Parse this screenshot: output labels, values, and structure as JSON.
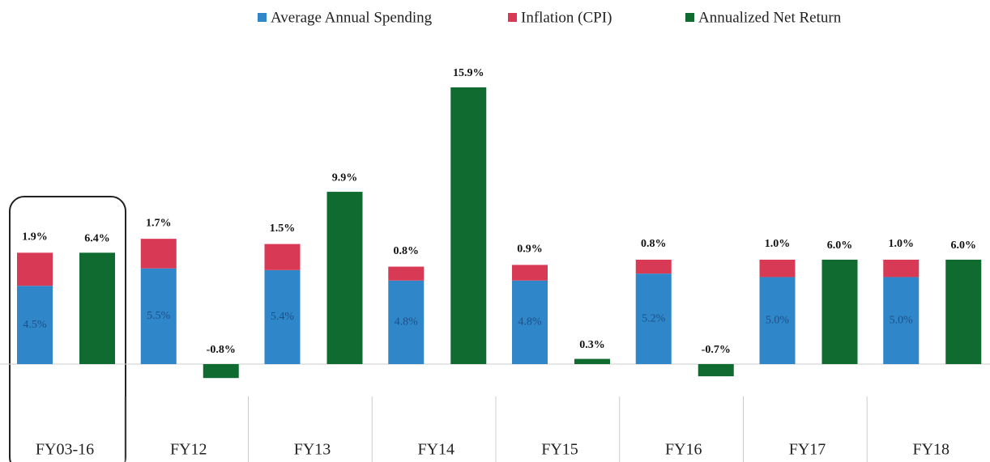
{
  "chart_data": {
    "type": "bar",
    "categories": [
      "FY03-16",
      "FY12",
      "FY13",
      "FY14",
      "FY15",
      "FY16",
      "FY17",
      "FY18"
    ],
    "series": [
      {
        "name": "Average Annual Spending",
        "color": "#2f87c9",
        "values": [
          4.5,
          5.5,
          5.4,
          4.8,
          4.8,
          5.2,
          5.0,
          5.0
        ],
        "value_labels": [
          "4.5%",
          "5.5%",
          "5.4%",
          "4.8%",
          "4.8%",
          "5.2%",
          "5.0%",
          "5.0%"
        ]
      },
      {
        "name": "Inflation (CPI)",
        "color": "#d83a56",
        "values": [
          1.9,
          1.7,
          1.5,
          0.8,
          0.9,
          0.8,
          1.0,
          1.0
        ],
        "value_labels": [
          "1.9%",
          "1.7%",
          "1.5%",
          "0.8%",
          "0.9%",
          "0.8%",
          "1.0%",
          "1.0%"
        ]
      },
      {
        "name": "Annualized Net Return",
        "color": "#0f6b30",
        "values": [
          6.4,
          -0.8,
          9.9,
          15.9,
          0.3,
          -0.7,
          6.0,
          6.0
        ],
        "value_labels": [
          "6.4%",
          "-0.8%",
          "9.9%",
          "15.9%",
          "0.3%",
          "-0.7%",
          "6.0%",
          "6.0%"
        ]
      }
    ],
    "legend": "top"
  }
}
